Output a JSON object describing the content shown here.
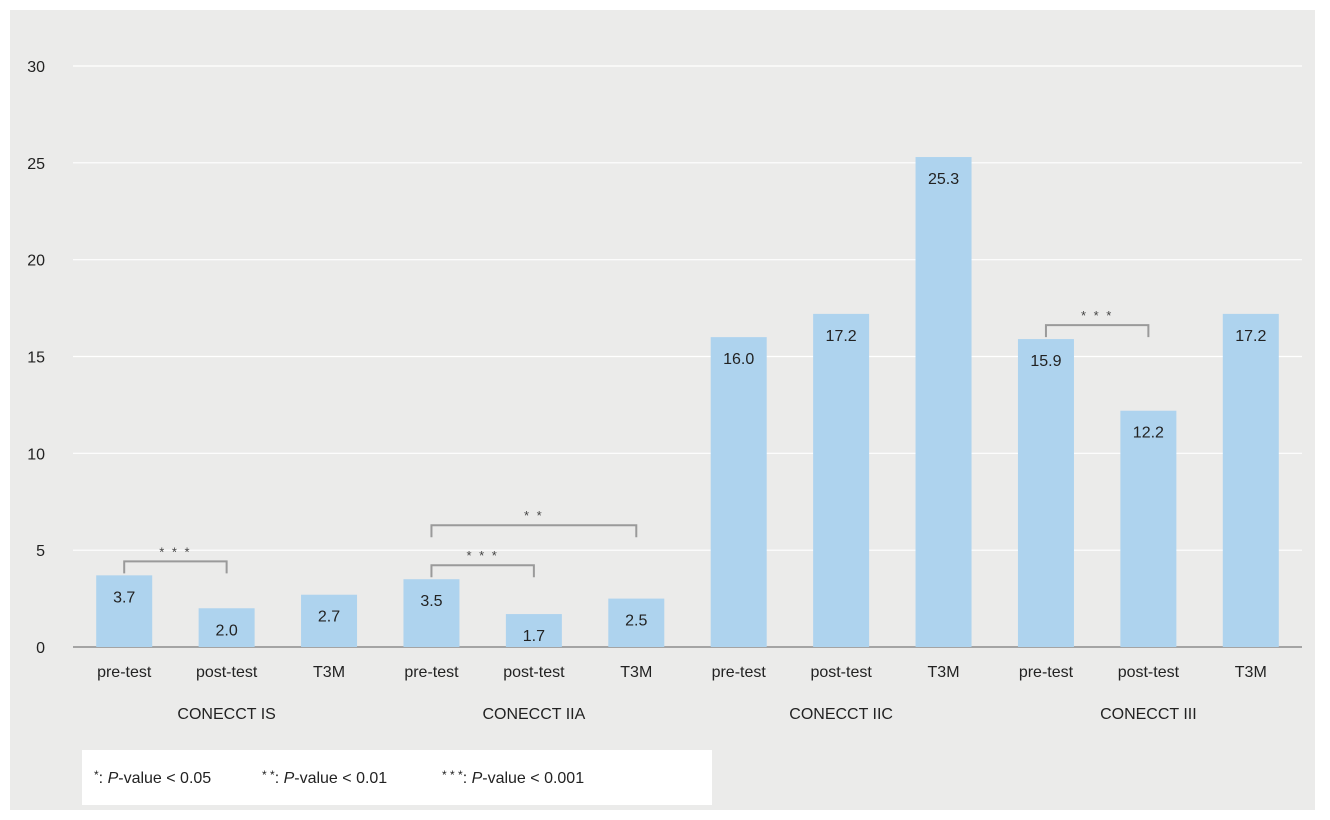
{
  "chart_data": {
    "type": "bar",
    "ylim": [
      0,
      30
    ],
    "yticks": [
      "0",
      "5",
      "10",
      "15",
      "20",
      "25",
      "30"
    ],
    "grid": true,
    "groups": [
      {
        "name": "CONECCT IS",
        "categories": [
          "pre-test",
          "post-test",
          "T3M"
        ],
        "values": [
          3.7,
          2.0,
          2.7
        ]
      },
      {
        "name": "CONECCT IIA",
        "categories": [
          "pre-test",
          "post-test",
          "T3M"
        ],
        "values": [
          3.5,
          1.7,
          2.5
        ]
      },
      {
        "name": "CONECCT IIC",
        "categories": [
          "pre-test",
          "post-test",
          "T3M"
        ],
        "values": [
          16.0,
          17.2,
          25.3
        ]
      },
      {
        "name": "CONECCT III",
        "categories": [
          "pre-test",
          "post-test",
          "T3M"
        ],
        "values": [
          15.9,
          12.2,
          17.2
        ]
      }
    ],
    "significance": [
      {
        "group": 0,
        "from": 0,
        "to": 1,
        "label": "* * *"
      },
      {
        "group": 1,
        "from": 0,
        "to": 1,
        "label": "* * *"
      },
      {
        "group": 1,
        "from": 0,
        "to": 2,
        "label": "* *"
      },
      {
        "group": 3,
        "from": 0,
        "to": 1,
        "label": "* * *"
      }
    ],
    "colors": {
      "bar": "#aed3ee",
      "grid": "#ffffff",
      "axis": "#8c8c8c",
      "bracket": "#9a9a9a"
    }
  },
  "legend": [
    {
      "stars": "*",
      "sep": ": ",
      "p": "P",
      "rest": "-value < 0.05"
    },
    {
      "stars": "* *",
      "sep": ": ",
      "p": "P",
      "rest": "-value < 0.01"
    },
    {
      "stars": "* * *",
      "sep": ": ",
      "p": "P",
      "rest": "-value < 0.001"
    }
  ]
}
